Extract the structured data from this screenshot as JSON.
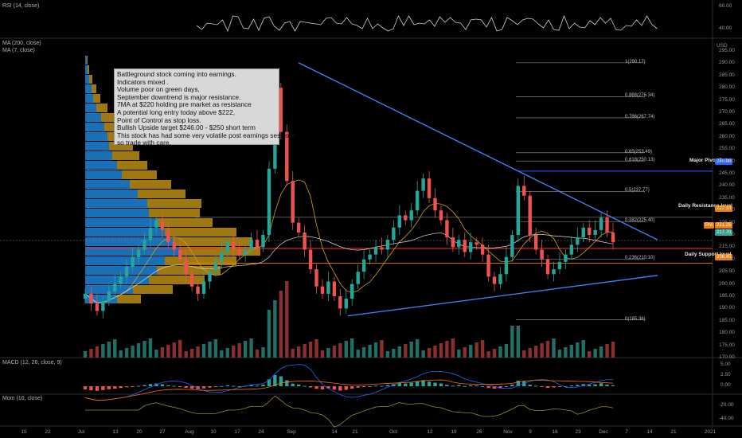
{
  "panels": {
    "rsi_title": "RSI (14, close)",
    "ma_title_1": "MA (200, close)",
    "ma_title_2": "MA (7, close)",
    "macd_title": "MACD (12, 26, close, 9)",
    "mom_title": "Mom (10, close)"
  },
  "note": {
    "lines": [
      "Battleground stock coming into earnings.",
      "Indicators mixed .",
      "Volume poor on green days,",
      "September downtrend is major resistance.",
      "7MA at $220 holding pre market as resistance",
      "A potential long entry today above $222,",
      "Point of Control as stop loss.",
      "Bullish Upside target $246.00 - $250 short term",
      "This stock has had some very volatile post earnings sessions",
      "so trade with care."
    ]
  },
  "annotations": {
    "pivot": "Major Pivot Point",
    "resistance": "Daily Resistance level",
    "support": "Daily Support level"
  },
  "price_tags": {
    "pivot": "246.00",
    "resistance": "227.18",
    "last_a": "221.25",
    "last_b": "217.70",
    "support": "208.45",
    "currency": "USD",
    "pre": "Pre"
  },
  "fib": [
    "1(290.17)",
    "0.868(276.34)",
    "0.786(267.74)",
    "0.65(253.49)",
    "0.618(250.13)",
    "0.5(237.77)",
    "0.382(225.40)",
    "0.236(210.10)",
    "0(185.36)"
  ],
  "price_axis": [
    "295.00",
    "290.00",
    "285.00",
    "280.00",
    "275.00",
    "270.00",
    "265.00",
    "260.00",
    "255.00",
    "250.00",
    "245.00",
    "240.00",
    "235.00",
    "230.00",
    "225.00",
    "220.00",
    "215.00",
    "210.00",
    "205.00",
    "200.00",
    "195.00",
    "190.00",
    "185.00",
    "180.00",
    "175.00",
    "170.00"
  ],
  "rsi_axis": [
    "60.00",
    "40.00"
  ],
  "macd_axis": [
    "5.00",
    "2.50",
    "0.00"
  ],
  "mom_axis": [
    "-20.00",
    "-40.00"
  ],
  "x_axis": [
    "15",
    "22",
    "Jul",
    "13",
    "20",
    "27",
    "Aug",
    "10",
    "17",
    "24",
    "Sep",
    "14",
    "21",
    "Oct",
    "12",
    "19",
    "26",
    "Nov",
    "9",
    "16",
    "23",
    "Dec",
    "7",
    "14",
    "21",
    "2021"
  ],
  "colors": {
    "up": "#26a69a",
    "down": "#ef5350",
    "trend": "#2962ff",
    "vp_up": "#2196f3",
    "vp_down": "#d4a017",
    "pivot": "#2962ff",
    "resist": "#f57c00"
  },
  "chart_data": {
    "type": "candlestick",
    "title": "",
    "y_unit": "USD",
    "ylim": [
      170,
      295
    ],
    "levels": {
      "pivot": 246.0,
      "resistance": 227.18,
      "support": 208.45,
      "last": 217.7
    },
    "fib_levels": [
      [
        1,
        290.17
      ],
      [
        0.868,
        276.34
      ],
      [
        0.786,
        267.74
      ],
      [
        0.65,
        253.49
      ],
      [
        0.618,
        250.13
      ],
      [
        0.5,
        237.77
      ],
      [
        0.382,
        225.4
      ],
      [
        0.236,
        210.1
      ],
      [
        0,
        185.36
      ]
    ],
    "closes": [
      196,
      192,
      189,
      193,
      197,
      200,
      203,
      207,
      211,
      214,
      218,
      223,
      226,
      222,
      217,
      214,
      210,
      204,
      199,
      196,
      201,
      205,
      209,
      213,
      217,
      214,
      212,
      214,
      218,
      215,
      220,
      247,
      280,
      262,
      242,
      225,
      221,
      214,
      206,
      199,
      196,
      201,
      195,
      190,
      194,
      200,
      205,
      210,
      212,
      215,
      214,
      218,
      223,
      228,
      226,
      230,
      238,
      243,
      235,
      230,
      226,
      219,
      215,
      218,
      213,
      217,
      216,
      212,
      203,
      200,
      204,
      211,
      220,
      240,
      236,
      220,
      214,
      210,
      204,
      206,
      209,
      212,
      216,
      219,
      223,
      220,
      222,
      227,
      221,
      217
    ]
  }
}
